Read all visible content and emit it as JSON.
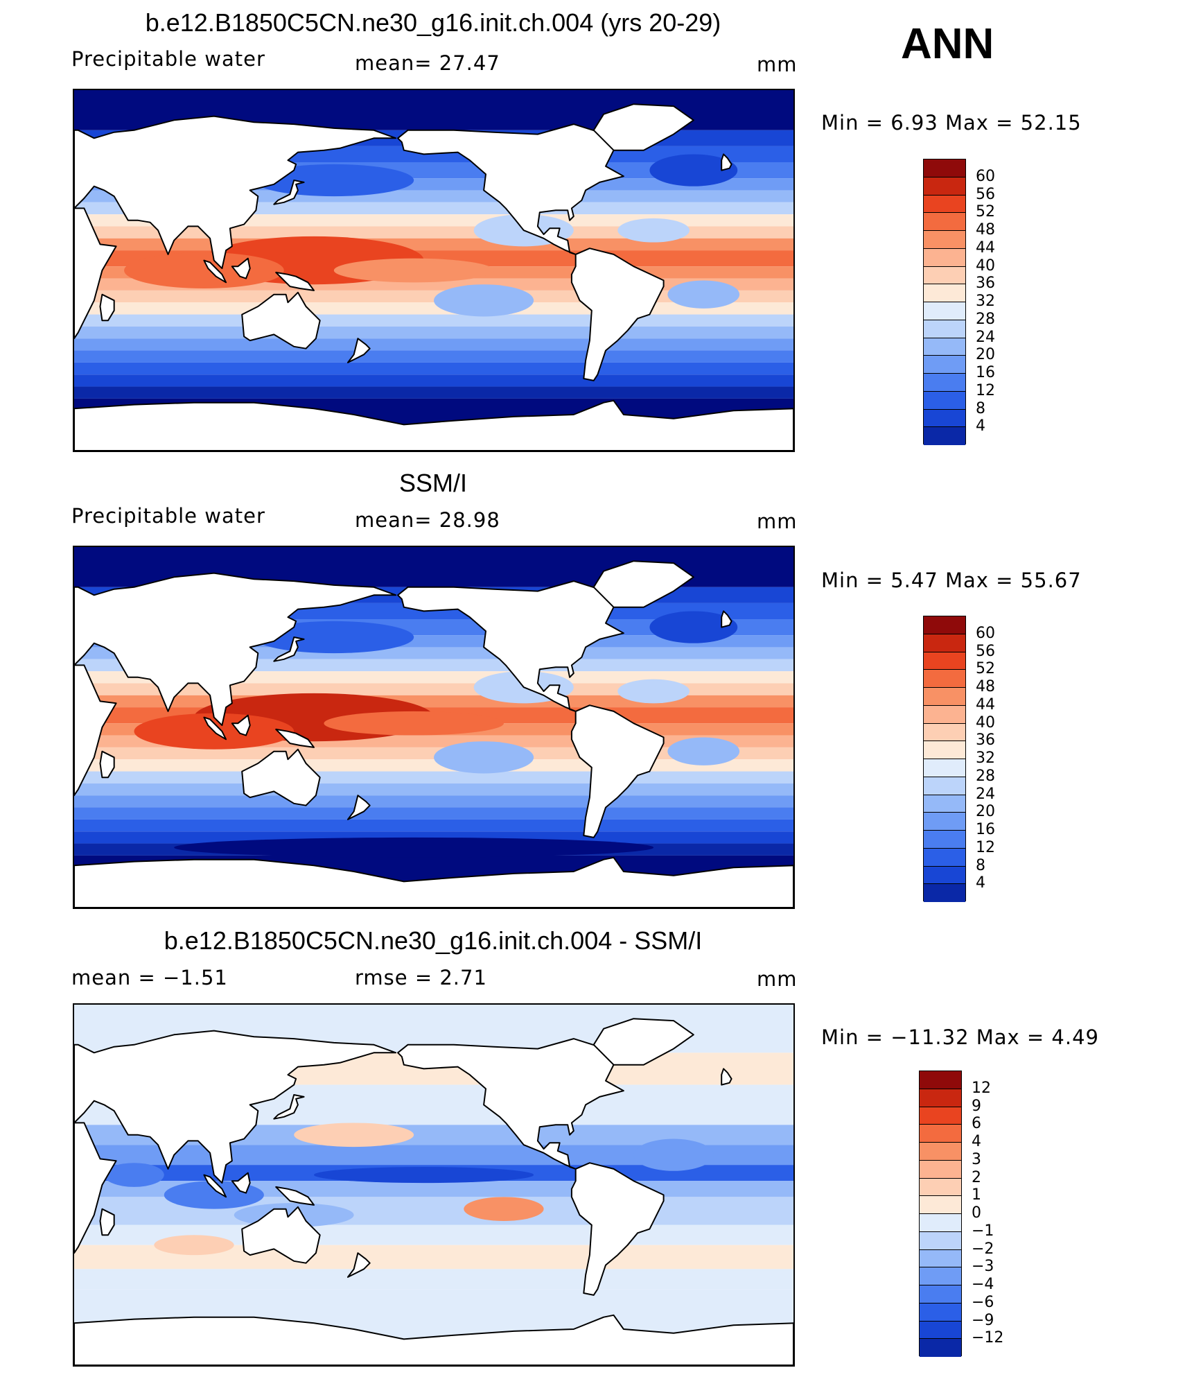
{
  "season": "ANN",
  "palette": {
    "main": [
      "#000a7f",
      "#0a28a7",
      "#1846d5",
      "#2b5fe7",
      "#4a7df0",
      "#6f9cf5",
      "#95b9f8",
      "#bcd4fa",
      "#e0ecfb",
      "#fde9d7",
      "#fdcfb4",
      "#fcb391",
      "#f89165",
      "#f36b3f",
      "#e94420",
      "#c92710",
      "#8f0a0a"
    ],
    "diff": [
      "#000a7f",
      "#0a28a7",
      "#1846d5",
      "#2b5fe7",
      "#4a7df0",
      "#6f9cf5",
      "#95b9f8",
      "#bcd4fa",
      "#e0ecfb",
      "#fde9d7",
      "#fdcfb4",
      "#fcb391",
      "#f89165",
      "#f36b3f",
      "#e94420",
      "#c92710",
      "#8f0a0a"
    ]
  },
  "panels": [
    {
      "title": "b.e12.B1850C5CN.ne30_g16.init.ch.004 (yrs 20-29)",
      "left_label": "Precipitable  water",
      "mid_label": "mean=   27.47",
      "units": "mm",
      "minmax": "Min  =     6.93  Max  =    52.15",
      "colorbar_ticks": [
        "60",
        "56",
        "52",
        "48",
        "44",
        "40",
        "36",
        "32",
        "28",
        "24",
        "20",
        "16",
        "12",
        "8",
        "4"
      ]
    },
    {
      "title": "SSM/I",
      "left_label": "Precipitable  water",
      "mid_label": "mean=   28.98",
      "units": "mm",
      "minmax": "Min  =     5.47  Max  =    55.67",
      "colorbar_ticks": [
        "60",
        "56",
        "52",
        "48",
        "44",
        "40",
        "36",
        "32",
        "28",
        "24",
        "20",
        "16",
        "12",
        "8",
        "4"
      ]
    },
    {
      "title": "b.e12.B1850C5CN.ne30_g16.init.ch.004 - SSM/I",
      "left_label": "mean  =    −1.51",
      "mid_label": "rmse  =     2.71",
      "units": "mm",
      "minmax": "Min  =  −11.32  Max  =      4.49",
      "colorbar_ticks": [
        "12",
        "9",
        "6",
        "4",
        "3",
        "2",
        "1",
        "0",
        "−1",
        "−2",
        "−3",
        "−4",
        "−6",
        "−9",
        "−12"
      ]
    }
  ],
  "chart_data": [
    {
      "type": "heatmap",
      "title": "b.e12.B1850C5CN.ne30_g16.init.ch.004 (yrs 20-29)",
      "variable": "Precipitable  water",
      "units": "mm",
      "mean": 27.47,
      "min": 6.93,
      "max": 52.15,
      "levels": [
        4,
        8,
        12,
        16,
        20,
        24,
        28,
        32,
        36,
        40,
        44,
        48,
        52,
        56,
        60
      ]
    },
    {
      "type": "heatmap",
      "title": "SSM/I",
      "variable": "Precipitable  water",
      "units": "mm",
      "mean": 28.98,
      "min": 5.47,
      "max": 55.67,
      "levels": [
        4,
        8,
        12,
        16,
        20,
        24,
        28,
        32,
        36,
        40,
        44,
        48,
        52,
        56,
        60
      ]
    },
    {
      "type": "heatmap",
      "title": "b.e12.B1850C5CN.ne30_g16.init.ch.004 - SSM/I",
      "units": "mm",
      "mean": -1.51,
      "rmse": 2.71,
      "min": -11.32,
      "max": 4.49,
      "levels": [
        -12,
        -9,
        -6,
        -4,
        -3,
        -2,
        -1,
        0,
        1,
        2,
        3,
        4,
        6,
        9,
        12
      ]
    }
  ]
}
